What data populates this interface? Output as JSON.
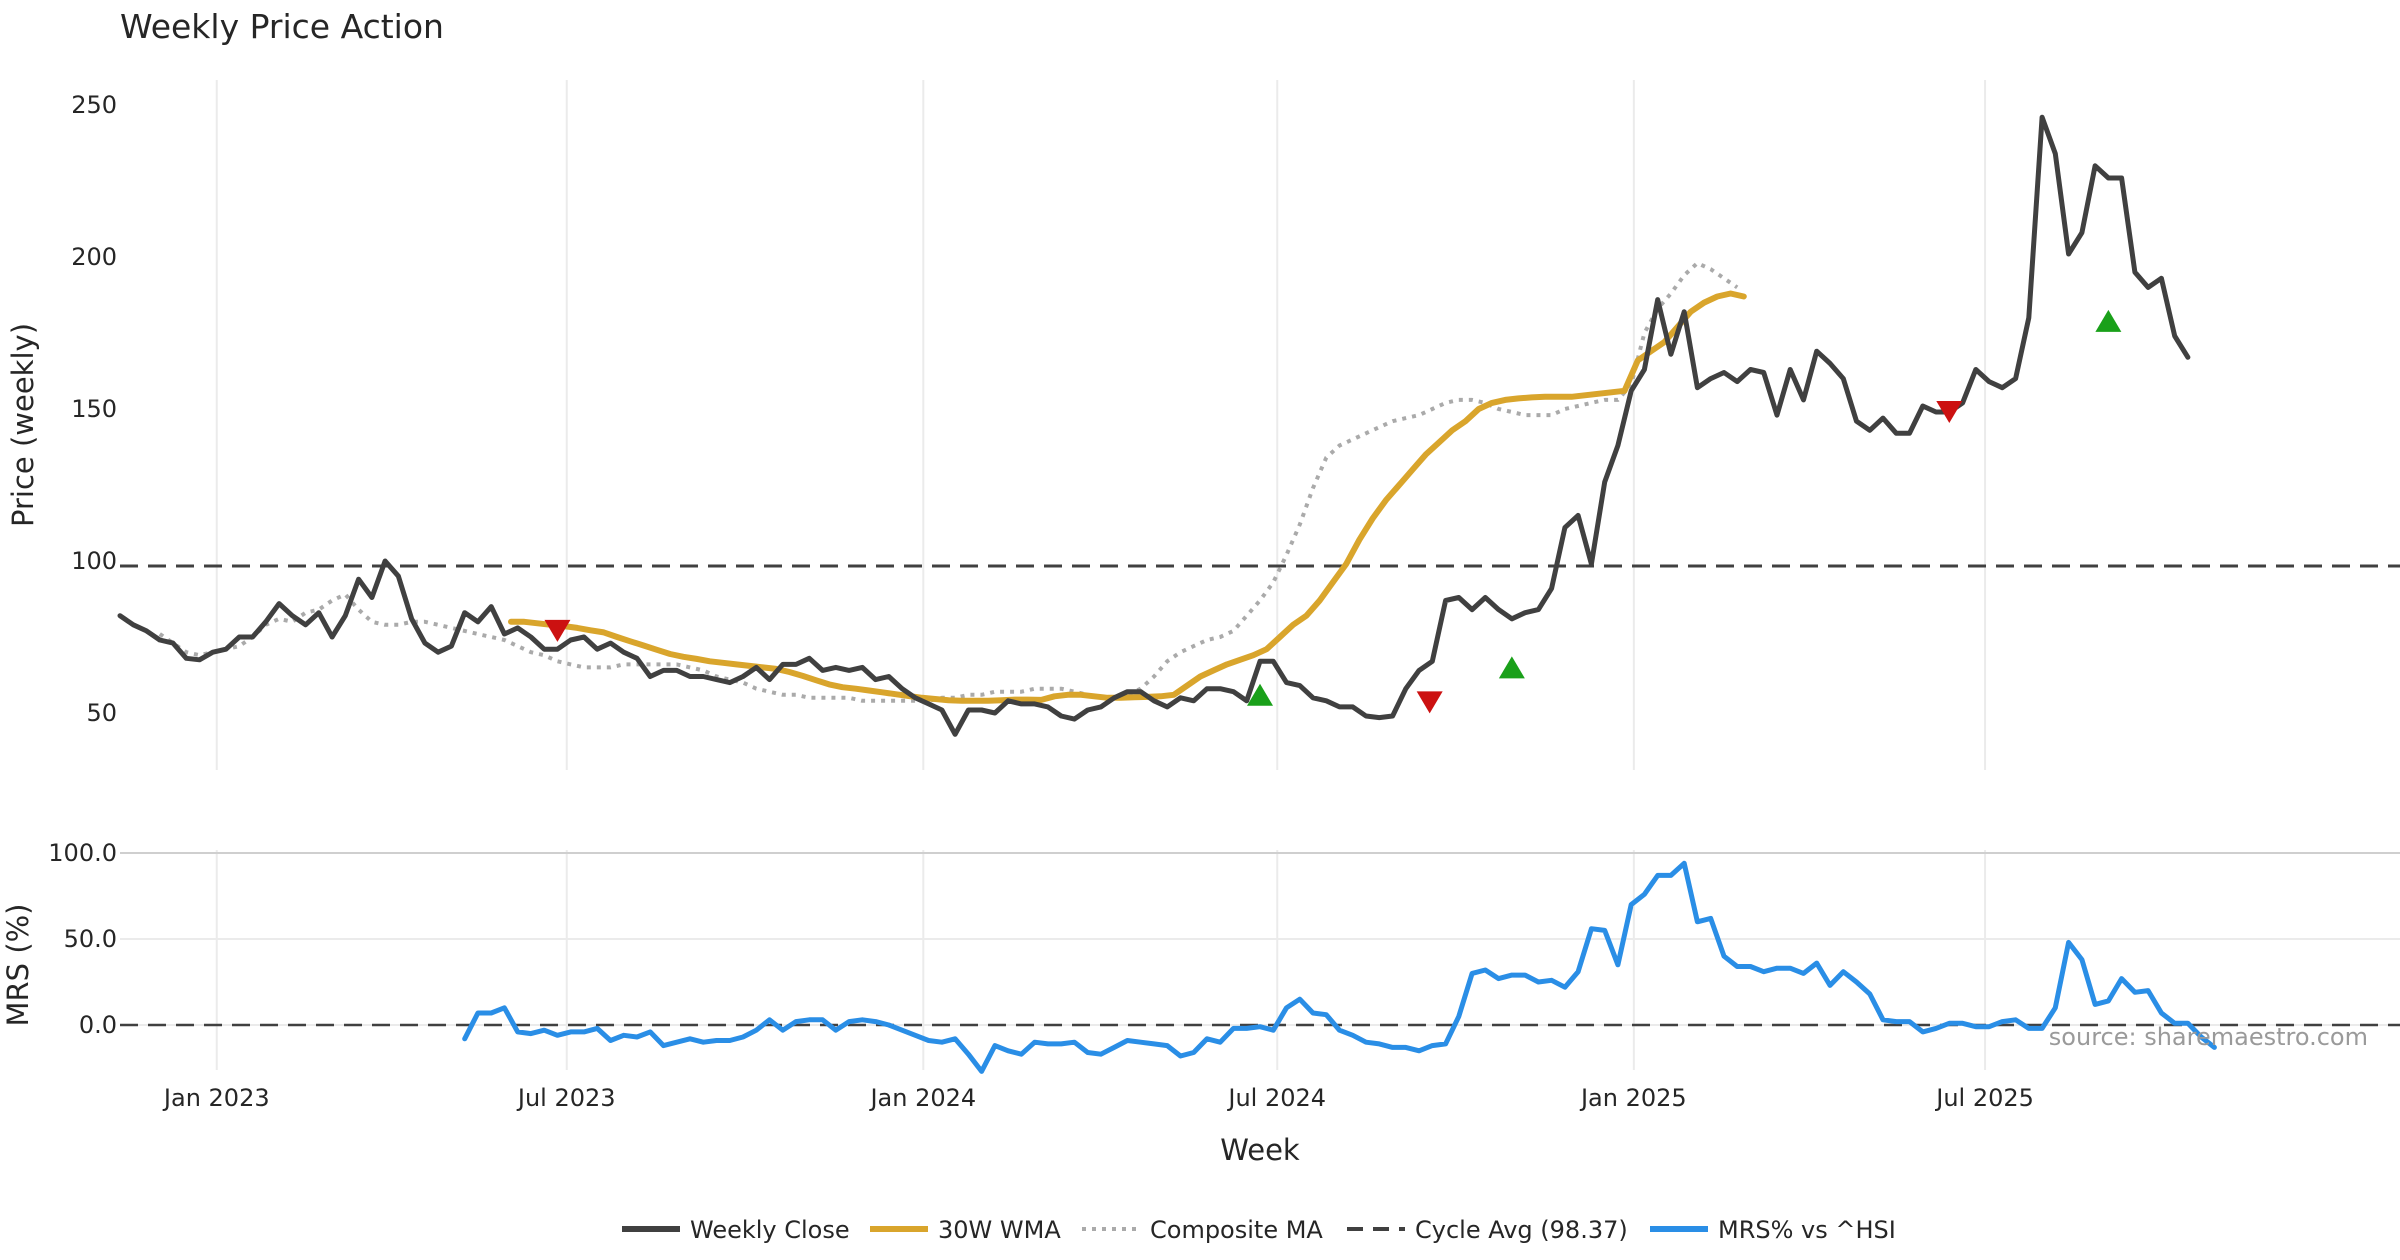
{
  "colors": {
    "close": "#404040",
    "wma": "#d9a52c",
    "composite": "#aaaaaa",
    "cycle": "#404040",
    "mrs": "#2a8ee6",
    "buy": "#1aa01a",
    "sell": "#cc1111",
    "grid": "#ebebeb"
  },
  "chart_data": [
    {
      "type": "line",
      "title": "Weekly Price Action",
      "xlabel": "",
      "ylabel": "Price (weekly)",
      "ylim": [
        35,
        258
      ],
      "yticks": [
        50,
        100,
        150,
        200,
        250
      ],
      "xlim": [
        0,
        172
      ],
      "xticks": [
        {
          "x": 7.3,
          "label": "Jan 2023"
        },
        {
          "x": 33.7,
          "label": "Jul 2023"
        },
        {
          "x": 60.6,
          "label": "Jan 2024"
        },
        {
          "x": 87.3,
          "label": "Jul 2024"
        },
        {
          "x": 114.2,
          "label": "Jan 2025"
        },
        {
          "x": 140.7,
          "label": "Jul 2025"
        }
      ],
      "series": [
        {
          "name": "Weekly Close",
          "x0": 0,
          "values": [
            82,
            79,
            77,
            74,
            73,
            68,
            67.5,
            70,
            71,
            75,
            75,
            80,
            86,
            82,
            79,
            83,
            75,
            82,
            94,
            88,
            100,
            95,
            81,
            73,
            70,
            72,
            83,
            80,
            85,
            76,
            78,
            75,
            71,
            71,
            74,
            75,
            71,
            73,
            70,
            68,
            62,
            64,
            64,
            62,
            62,
            61,
            60,
            62,
            65,
            61,
            66,
            66,
            68,
            64,
            65,
            64,
            65,
            61,
            62,
            58,
            55,
            53,
            51,
            43,
            51,
            51,
            50,
            54,
            53,
            53,
            52,
            49,
            48,
            51,
            52,
            55,
            57,
            57,
            54,
            52,
            55,
            54,
            58,
            58,
            57,
            54,
            67,
            67,
            60,
            59,
            55,
            54,
            52,
            52,
            49,
            48.5,
            49,
            58,
            64,
            67,
            87,
            88,
            84,
            88,
            84,
            81,
            83,
            84,
            91,
            111,
            115,
            99,
            126,
            138,
            156,
            163,
            186,
            168,
            182,
            157,
            160,
            162,
            159,
            163,
            162,
            148,
            163,
            153,
            169,
            165,
            160,
            146,
            143,
            147,
            142,
            142,
            151,
            149,
            149,
            152,
            163,
            159,
            157,
            160,
            180,
            246,
            234,
            201,
            208,
            230,
            226,
            226,
            195,
            190,
            193,
            174,
            167
          ]
        },
        {
          "name": "30W WMA",
          "x0": 29.5,
          "values": [
            80,
            80,
            79.5,
            79,
            78.6,
            78,
            77.2,
            76.5,
            75,
            73.6,
            72.2,
            70.8,
            69.4,
            68.5,
            67.8,
            67,
            66.5,
            66,
            65.5,
            65,
            64.5,
            63.5,
            62.2,
            60.8,
            59.4,
            58.5,
            58,
            57.4,
            56.8,
            56.2,
            55.6,
            55,
            54.6,
            54.2,
            54,
            54,
            54,
            54.2,
            54.4,
            54.4,
            54.3,
            55.5,
            56,
            56,
            55.5,
            55,
            55,
            55.2,
            55.3,
            55.5,
            56,
            59,
            62,
            64,
            66,
            67.5,
            69,
            71,
            75,
            79,
            82,
            87,
            93,
            99,
            107,
            114,
            120,
            125,
            130,
            135,
            139,
            143,
            146,
            150,
            152,
            153,
            153.5,
            153.8,
            154,
            154,
            154,
            154.5,
            155,
            155.5,
            156,
            166,
            169,
            172,
            177,
            182,
            185,
            187,
            188,
            187
          ]
        },
        {
          "name": "Composite MA",
          "x0": 3,
          "values": [
            76,
            73,
            70,
            69,
            70,
            71,
            72,
            75,
            79,
            81,
            80,
            83,
            84,
            87,
            89,
            84,
            80,
            79,
            79,
            80,
            80,
            79,
            78,
            77,
            76,
            75,
            74,
            72,
            70,
            69,
            67,
            66,
            65,
            65,
            65,
            66,
            66,
            66,
            66,
            66,
            65,
            64,
            62,
            61,
            60,
            58,
            57,
            56,
            56,
            55,
            55,
            55,
            55,
            54,
            54,
            54,
            54,
            54,
            54,
            55,
            55,
            56,
            56,
            57,
            57,
            57,
            58,
            58,
            58,
            57,
            56,
            55,
            55,
            56,
            58,
            62,
            67,
            70,
            72,
            74,
            75,
            77,
            82,
            87,
            93,
            102,
            112,
            124,
            134,
            138,
            140,
            142,
            144,
            146,
            147,
            148,
            150,
            152,
            153,
            153,
            152,
            150,
            149,
            148,
            148,
            148,
            150,
            151,
            152,
            153,
            153,
            158,
            175,
            183,
            188,
            194,
            198,
            196,
            193,
            190
          ]
        },
        {
          "name": "Cycle Avg (98.37)",
          "constant": 98.37
        }
      ],
      "markers": [
        {
          "type": "sell",
          "x": 33,
          "y": 77
        },
        {
          "type": "buy",
          "x": 86,
          "y": 56
        },
        {
          "type": "sell",
          "x": 98.8,
          "y": 53.5
        },
        {
          "type": "buy",
          "x": 105,
          "y": 65
        },
        {
          "type": "sell",
          "x": 138,
          "y": 149
        },
        {
          "type": "buy",
          "x": 150,
          "y": 179
        }
      ]
    },
    {
      "type": "line",
      "xlabel": "Week",
      "ylabel": "MRS (%)",
      "ylim": [
        -29,
        103
      ],
      "yticks": [
        0,
        50,
        100
      ],
      "ytick_labels": [
        "0.0",
        "50.0",
        "100.0"
      ],
      "series": [
        {
          "name": "MRS% vs ^HSI",
          "x0": 26,
          "values": [
            -8,
            7,
            7,
            10,
            -4,
            -5,
            -3,
            -6,
            -4,
            -4,
            -2,
            -9,
            -6,
            -7,
            -4,
            -12,
            -10,
            -8,
            -10,
            -9,
            -9,
            -7,
            -3,
            3,
            -3,
            2,
            3,
            3,
            -3,
            2,
            3,
            2,
            0,
            -3,
            -6,
            -9,
            -10,
            -8,
            -17,
            -27,
            -12,
            -15,
            -17,
            -10,
            -11,
            -11,
            -10,
            -16,
            -17,
            -13,
            -9,
            -10,
            -11,
            -12,
            -18,
            -16,
            -8,
            -10,
            -2,
            -2,
            -1,
            -3,
            10,
            15,
            7,
            6,
            -3,
            -6,
            -10,
            -11,
            -13,
            -13,
            -15,
            -12,
            -11,
            5,
            30,
            32,
            27,
            29,
            29,
            25,
            26,
            22,
            31,
            56,
            55,
            35,
            70,
            76,
            87,
            87,
            94,
            60,
            62,
            40,
            34,
            34,
            31,
            33,
            33,
            30,
            36,
            23,
            31,
            25,
            18,
            3,
            2,
            2,
            -4,
            -2,
            1,
            1,
            -1,
            -1,
            2,
            3,
            -2,
            -2,
            10,
            48,
            38,
            12,
            14,
            27,
            19,
            20,
            7,
            1,
            1,
            -7,
            -13
          ]
        },
        {
          "name": "Zero",
          "constant": 0
        }
      ]
    }
  ],
  "legend": {
    "items": [
      {
        "label": "Weekly Close",
        "style": "solid",
        "color": "#404040"
      },
      {
        "label": "30W WMA",
        "style": "solid",
        "color": "#d9a52c"
      },
      {
        "label": "Composite MA",
        "style": "dotted",
        "color": "#aaaaaa"
      },
      {
        "label": "Cycle Avg (98.37)",
        "style": "dashed",
        "color": "#404040"
      },
      {
        "label": "MRS% vs ^HSI",
        "style": "solid",
        "color": "#2a8ee6"
      }
    ]
  },
  "source_text": "source: sharemaestro.com"
}
